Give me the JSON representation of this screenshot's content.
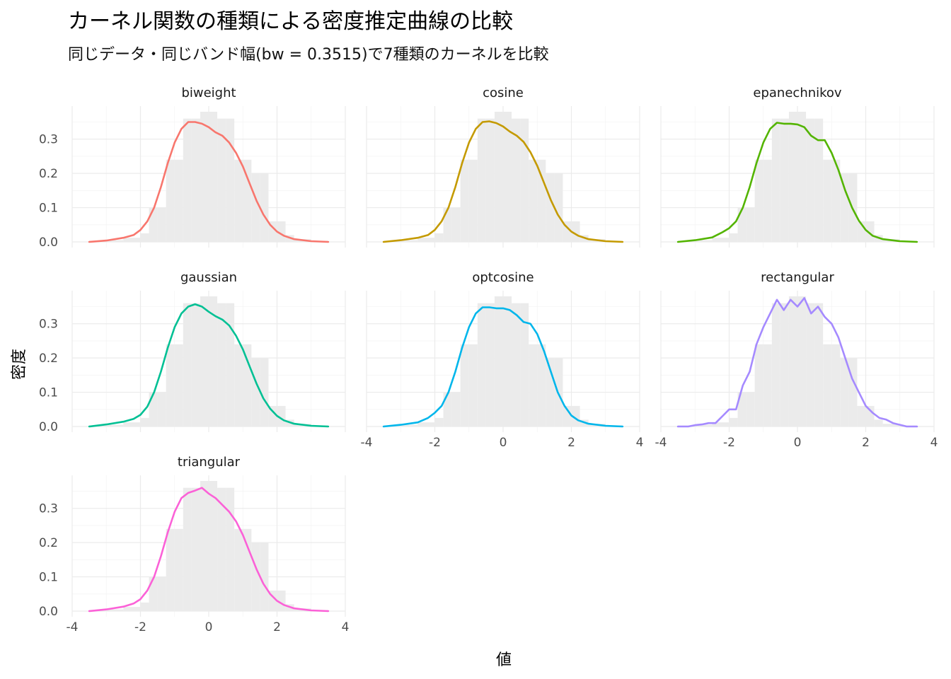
{
  "chart_data": {
    "type": "line",
    "title": "カーネル関数の種類による密度推定曲線の比較",
    "subtitle": "同じデータ・同じバンド幅(bw = 0.3515)で7種類のカーネルを比較",
    "xlabel": "値",
    "ylabel": "密度",
    "xlim": [
      -4,
      4
    ],
    "ylim": [
      0,
      0.38
    ],
    "x_ticks": [
      -4,
      -2,
      0,
      2,
      4
    ],
    "x_tick_labels": [
      "-4",
      "-2",
      "0",
      "2",
      "4"
    ],
    "y_ticks": [
      0,
      0.1,
      0.2,
      0.3
    ],
    "y_tick_labels": [
      "0.0",
      "0.1",
      "0.2",
      "0.3"
    ],
    "grid": true,
    "legend": "none",
    "histogram": {
      "bin_edges": [
        -3.5,
        -3.0,
        -2.5,
        -2.0,
        -1.75,
        -1.5,
        -1.25,
        -1.0,
        -0.75,
        -0.5,
        -0.25,
        0.0,
        0.25,
        0.5,
        0.75,
        1.0,
        1.25,
        1.5,
        1.75,
        2.0,
        2.25,
        2.5,
        3.0,
        3.5
      ],
      "density": [
        0.003,
        0.005,
        0.012,
        0.025,
        0.1,
        0.1,
        0.24,
        0.24,
        0.36,
        0.36,
        0.38,
        0.38,
        0.36,
        0.36,
        0.24,
        0.24,
        0.2,
        0.2,
        0.06,
        0.06,
        0.02,
        0.008,
        0.003
      ]
    },
    "series": [
      {
        "name": "biweight",
        "color": "#F8766D",
        "x": [
          -3.5,
          -3.0,
          -2.5,
          -2.2,
          -2.0,
          -1.8,
          -1.6,
          -1.4,
          -1.2,
          -1.0,
          -0.8,
          -0.6,
          -0.4,
          -0.2,
          0.0,
          0.2,
          0.4,
          0.6,
          0.8,
          1.0,
          1.2,
          1.4,
          1.6,
          1.8,
          2.0,
          2.2,
          2.5,
          3.0,
          3.5
        ],
        "y": [
          0.0,
          0.004,
          0.012,
          0.02,
          0.035,
          0.06,
          0.1,
          0.16,
          0.23,
          0.29,
          0.33,
          0.35,
          0.35,
          0.345,
          0.335,
          0.32,
          0.31,
          0.29,
          0.26,
          0.22,
          0.17,
          0.12,
          0.08,
          0.05,
          0.03,
          0.018,
          0.008,
          0.002,
          0.0
        ]
      },
      {
        "name": "cosine",
        "color": "#C49A00",
        "x": [
          -3.5,
          -3.0,
          -2.5,
          -2.2,
          -2.0,
          -1.8,
          -1.6,
          -1.4,
          -1.2,
          -1.0,
          -0.8,
          -0.6,
          -0.4,
          -0.2,
          0.0,
          0.2,
          0.4,
          0.6,
          0.8,
          1.0,
          1.2,
          1.4,
          1.6,
          1.8,
          2.0,
          2.2,
          2.5,
          3.0,
          3.5
        ],
        "y": [
          0.0,
          0.005,
          0.012,
          0.02,
          0.035,
          0.06,
          0.1,
          0.16,
          0.23,
          0.29,
          0.33,
          0.35,
          0.352,
          0.347,
          0.337,
          0.322,
          0.31,
          0.292,
          0.262,
          0.222,
          0.172,
          0.122,
          0.08,
          0.05,
          0.03,
          0.018,
          0.008,
          0.002,
          0.0
        ]
      },
      {
        "name": "epanechnikov",
        "color": "#53B400",
        "x": [
          -3.5,
          -3.0,
          -2.5,
          -2.2,
          -2.0,
          -1.8,
          -1.6,
          -1.4,
          -1.2,
          -1.0,
          -0.8,
          -0.6,
          -0.4,
          -0.2,
          0.0,
          0.2,
          0.4,
          0.6,
          0.8,
          1.0,
          1.2,
          1.4,
          1.6,
          1.8,
          2.0,
          2.2,
          2.5,
          3.0,
          3.5
        ],
        "y": [
          0.0,
          0.005,
          0.013,
          0.028,
          0.04,
          0.06,
          0.1,
          0.16,
          0.23,
          0.29,
          0.33,
          0.348,
          0.345,
          0.345,
          0.343,
          0.335,
          0.31,
          0.297,
          0.297,
          0.26,
          0.21,
          0.15,
          0.1,
          0.062,
          0.035,
          0.018,
          0.008,
          0.002,
          0.0
        ]
      },
      {
        "name": "gaussian",
        "color": "#00C094",
        "x": [
          -3.5,
          -3.0,
          -2.5,
          -2.2,
          -2.0,
          -1.8,
          -1.6,
          -1.4,
          -1.2,
          -1.0,
          -0.8,
          -0.6,
          -0.4,
          -0.2,
          0.0,
          0.2,
          0.4,
          0.6,
          0.8,
          1.0,
          1.2,
          1.4,
          1.6,
          1.8,
          2.0,
          2.2,
          2.5,
          3.0,
          3.5
        ],
        "y": [
          0.0,
          0.006,
          0.014,
          0.022,
          0.034,
          0.058,
          0.1,
          0.16,
          0.23,
          0.29,
          0.33,
          0.35,
          0.357,
          0.35,
          0.335,
          0.322,
          0.312,
          0.295,
          0.265,
          0.225,
          0.175,
          0.125,
          0.082,
          0.052,
          0.031,
          0.018,
          0.008,
          0.002,
          0.0
        ]
      },
      {
        "name": "optcosine",
        "color": "#00B6EB",
        "x": [
          -3.5,
          -3.0,
          -2.5,
          -2.2,
          -2.0,
          -1.8,
          -1.6,
          -1.4,
          -1.2,
          -1.0,
          -0.8,
          -0.6,
          -0.4,
          -0.2,
          0.0,
          0.2,
          0.4,
          0.6,
          0.8,
          1.0,
          1.2,
          1.4,
          1.6,
          1.8,
          2.0,
          2.2,
          2.5,
          3.0,
          3.5
        ],
        "y": [
          0.0,
          0.005,
          0.012,
          0.025,
          0.04,
          0.06,
          0.1,
          0.16,
          0.23,
          0.29,
          0.33,
          0.348,
          0.348,
          0.345,
          0.345,
          0.34,
          0.325,
          0.305,
          0.3,
          0.27,
          0.22,
          0.16,
          0.1,
          0.06,
          0.032,
          0.018,
          0.008,
          0.002,
          0.0
        ]
      },
      {
        "name": "rectangular",
        "color": "#A58AFF",
        "x": [
          -3.5,
          -3.2,
          -3.0,
          -2.8,
          -2.6,
          -2.4,
          -2.2,
          -2.0,
          -1.8,
          -1.6,
          -1.4,
          -1.2,
          -1.0,
          -0.8,
          -0.6,
          -0.4,
          -0.2,
          0.0,
          0.2,
          0.4,
          0.6,
          0.8,
          1.0,
          1.2,
          1.4,
          1.6,
          1.8,
          2.0,
          2.2,
          2.4,
          2.6,
          2.8,
          3.0,
          3.2,
          3.5
        ],
        "y": [
          0.0,
          0.0,
          0.004,
          0.006,
          0.01,
          0.01,
          0.03,
          0.05,
          0.05,
          0.12,
          0.16,
          0.24,
          0.29,
          0.33,
          0.37,
          0.34,
          0.37,
          0.35,
          0.375,
          0.33,
          0.35,
          0.32,
          0.3,
          0.26,
          0.2,
          0.14,
          0.1,
          0.06,
          0.04,
          0.025,
          0.02,
          0.01,
          0.005,
          0.0,
          0.0
        ]
      },
      {
        "name": "triangular",
        "color": "#FB61D7",
        "x": [
          -3.5,
          -3.0,
          -2.5,
          -2.2,
          -2.0,
          -1.8,
          -1.6,
          -1.4,
          -1.2,
          -1.0,
          -0.8,
          -0.6,
          -0.4,
          -0.2,
          0.0,
          0.2,
          0.4,
          0.6,
          0.8,
          1.0,
          1.2,
          1.4,
          1.6,
          1.8,
          2.0,
          2.2,
          2.5,
          3.0,
          3.5
        ],
        "y": [
          0.0,
          0.005,
          0.013,
          0.022,
          0.035,
          0.06,
          0.1,
          0.16,
          0.23,
          0.29,
          0.33,
          0.345,
          0.352,
          0.36,
          0.343,
          0.33,
          0.31,
          0.29,
          0.262,
          0.222,
          0.172,
          0.122,
          0.08,
          0.05,
          0.03,
          0.018,
          0.008,
          0.002,
          0.0
        ]
      }
    ]
  }
}
